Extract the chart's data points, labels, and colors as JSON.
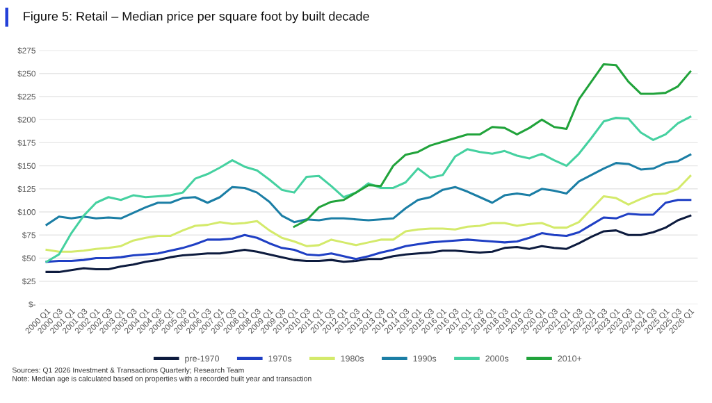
{
  "chart_data": {
    "type": "line",
    "title": "Figure 5: Retail – Median price per square foot by built decade",
    "categories": [
      "2000 Q1",
      "2000 Q3",
      "2001 Q1",
      "2001 Q3",
      "2002 Q1",
      "2002 Q3",
      "2003 Q1",
      "2003 Q3",
      "2004 Q1",
      "2004 Q3",
      "2005 Q1",
      "2005 Q3",
      "2006 Q1",
      "2006 Q3",
      "2007 Q1",
      "2007 Q3",
      "2008 Q1",
      "2008 Q3",
      "2009 Q1",
      "2009 Q3",
      "2010 Q1",
      "2010 Q3",
      "2011 Q1",
      "2011 Q3",
      "2012 Q1",
      "2012 Q3",
      "2013 Q1",
      "2013 Q3",
      "2014 Q1",
      "2014 Q3",
      "2015 Q1",
      "2015 Q3",
      "2016 Q1",
      "2016 Q3",
      "2017 Q1",
      "2017 Q3",
      "2018 Q1",
      "2018 Q3",
      "2019 Q1",
      "2019 Q3",
      "2020 Q1",
      "2020 Q3",
      "2021 Q1",
      "2021 Q3",
      "2022 Q1",
      "2022 Q3",
      "2023 Q1",
      "2023 Q3",
      "2024 Q1",
      "2024 Q3",
      "2025 Q1",
      "2025 Q3",
      "2026 Q1"
    ],
    "series": [
      {
        "name": "pre-1970",
        "color": "#0d1b3e",
        "values": [
          35,
          35,
          37,
          39,
          38,
          38,
          41,
          43,
          46,
          48,
          51,
          53,
          54,
          55,
          55,
          57,
          59,
          57,
          54,
          51,
          48,
          47,
          47,
          48,
          46,
          47,
          49,
          49,
          52,
          54,
          55,
          56,
          58,
          58,
          57,
          56,
          57,
          61,
          62,
          60,
          63,
          61,
          60,
          66,
          73,
          79,
          80,
          75,
          75,
          78,
          83,
          91,
          96
        ]
      },
      {
        "name": "1970s",
        "color": "#1f3fc4",
        "values": [
          46,
          47,
          47,
          48,
          50,
          50,
          51,
          53,
          54,
          55,
          58,
          61,
          65,
          70,
          70,
          71,
          75,
          72,
          66,
          61,
          59,
          54,
          53,
          55,
          52,
          49,
          52,
          56,
          59,
          63,
          65,
          67,
          68,
          69,
          70,
          69,
          68,
          67,
          68,
          72,
          77,
          75,
          74,
          78,
          86,
          94,
          93,
          98,
          97,
          97,
          110,
          113,
          113
        ]
      },
      {
        "name": "1980s",
        "color": "#d4ea6b",
        "values": [
          59,
          57,
          57,
          58,
          60,
          61,
          63,
          69,
          72,
          74,
          74,
          80,
          85,
          86,
          89,
          87,
          88,
          90,
          80,
          72,
          68,
          63,
          64,
          70,
          67,
          64,
          67,
          70,
          70,
          79,
          81,
          82,
          82,
          81,
          84,
          85,
          88,
          88,
          85,
          87,
          88,
          83,
          83,
          89,
          103,
          117,
          115,
          108,
          114,
          119,
          120,
          125,
          139
        ]
      },
      {
        "name": "1990s",
        "color": "#1b7ea5",
        "values": [
          86,
          95,
          93,
          95,
          93,
          94,
          93,
          99,
          105,
          110,
          110,
          115,
          116,
          110,
          116,
          127,
          126,
          121,
          111,
          96,
          89,
          92,
          91,
          93,
          93,
          92,
          91,
          92,
          93,
          104,
          113,
          116,
          124,
          127,
          122,
          116,
          110,
          118,
          120,
          118,
          125,
          123,
          120,
          133,
          140,
          147,
          153,
          152,
          146,
          147,
          153,
          155,
          162
        ]
      },
      {
        "name": "2000s",
        "color": "#45d1a0",
        "values": [
          46,
          54,
          77,
          96,
          110,
          116,
          113,
          118,
          116,
          117,
          118,
          121,
          136,
          141,
          148,
          156,
          149,
          145,
          135,
          124,
          121,
          138,
          139,
          128,
          116,
          121,
          131,
          126,
          126,
          132,
          147,
          137,
          140,
          160,
          168,
          165,
          163,
          166,
          161,
          158,
          163,
          156,
          150,
          163,
          180,
          198,
          202,
          201,
          186,
          178,
          184,
          196,
          203
        ]
      },
      {
        "name": "2010+",
        "color": "#21a33b",
        "values": [
          null,
          null,
          null,
          null,
          null,
          null,
          null,
          null,
          null,
          null,
          null,
          null,
          null,
          null,
          null,
          null,
          null,
          null,
          null,
          null,
          84,
          91,
          105,
          111,
          113,
          121,
          129,
          128,
          150,
          162,
          165,
          172,
          176,
          180,
          184,
          184,
          192,
          191,
          184,
          191,
          200,
          192,
          190,
          222,
          241,
          260,
          259,
          241,
          228,
          228,
          229,
          236,
          252
        ]
      }
    ],
    "ylim": [
      0,
      275
    ],
    "yticks": [
      {
        "value": 0,
        "label": "$-"
      },
      {
        "value": 25,
        "label": "$25"
      },
      {
        "value": 50,
        "label": "$50"
      },
      {
        "value": 75,
        "label": "$75"
      },
      {
        "value": 100,
        "label": "$100"
      },
      {
        "value": 125,
        "label": "$125"
      },
      {
        "value": 150,
        "label": "$150"
      },
      {
        "value": 175,
        "label": "$175"
      },
      {
        "value": 200,
        "label": "$200"
      },
      {
        "value": 225,
        "label": "$225"
      },
      {
        "value": 250,
        "label": "$250"
      },
      {
        "value": 275,
        "label": "$275"
      }
    ],
    "grid": "y",
    "legend": "bottom",
    "marker": "none",
    "line_style": "solid",
    "annotations": [
      "Sources: Q1 2026 Investment & Transactions Quarterly; Research Team",
      "Note: Median age is calculated based on properties with a recorded built year and transaction"
    ]
  }
}
